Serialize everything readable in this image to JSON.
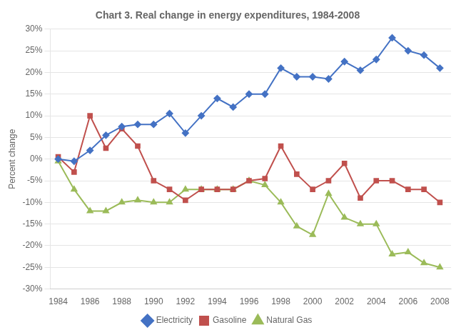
{
  "chart_data": {
    "type": "line",
    "title": "Chart 3. Real change in energy expenditures, 1984-2008",
    "ylabel": "Percent change",
    "x": [
      1984,
      1985,
      1986,
      1987,
      1988,
      1989,
      1990,
      1991,
      1992,
      1993,
      1994,
      1995,
      1996,
      1997,
      1998,
      1999,
      2000,
      2001,
      2002,
      2003,
      2004,
      2005,
      2006,
      2007,
      2008
    ],
    "series": [
      {
        "name": "Electricity",
        "color": "#4472C4",
        "marker": "diamond",
        "values": [
          0,
          -0.5,
          2,
          5.5,
          7.5,
          8,
          8,
          10.5,
          6,
          10,
          14,
          12,
          15,
          15,
          21,
          19,
          19,
          18.5,
          22.5,
          20.5,
          23,
          28,
          25,
          24,
          21
        ]
      },
      {
        "name": "Gasoline",
        "color": "#C0504D",
        "marker": "square",
        "values": [
          0.5,
          -3,
          10,
          2.5,
          7,
          3,
          -5,
          -7,
          -9.5,
          -7,
          -7,
          -7,
          -5,
          -4.5,
          3,
          -3.5,
          -7,
          -5,
          -1,
          -9,
          -5,
          -5,
          -7,
          -7,
          -10
        ]
      },
      {
        "name": "Natural Gas",
        "color": "#9BBB59",
        "marker": "triangle",
        "values": [
          -0.5,
          -7,
          -12,
          -12,
          -10,
          -9.5,
          -10,
          -10,
          -7,
          -7,
          -7,
          -7,
          -5,
          -6,
          -10,
          -15.5,
          -17.5,
          -8,
          -13.5,
          -15,
          -15,
          -22,
          -21.5,
          -24,
          -25
        ]
      }
    ],
    "xlim": [
      1983.5,
      2008.7
    ],
    "xticks": [
      1984,
      1986,
      1988,
      1990,
      1992,
      1994,
      1996,
      1998,
      2000,
      2002,
      2004,
      2006,
      2008
    ],
    "ylim": [
      -30,
      30
    ],
    "yticks": [
      {
        "value": -30,
        "label": "-30%"
      },
      {
        "value": -25,
        "label": "-25%"
      },
      {
        "value": -20,
        "label": "-20%"
      },
      {
        "value": -15,
        "label": "-15%"
      },
      {
        "value": -10,
        "label": "-10%"
      },
      {
        "value": -5,
        "label": "-5%"
      },
      {
        "value": 0,
        "label": "0%"
      },
      {
        "value": 5,
        "label": "5%"
      },
      {
        "value": 10,
        "label": "10%"
      },
      {
        "value": 15,
        "label": "15%"
      },
      {
        "value": 20,
        "label": "20%"
      },
      {
        "value": 25,
        "label": "25%"
      },
      {
        "value": 30,
        "label": "30%"
      }
    ],
    "grid": true,
    "legend": "bottom"
  }
}
